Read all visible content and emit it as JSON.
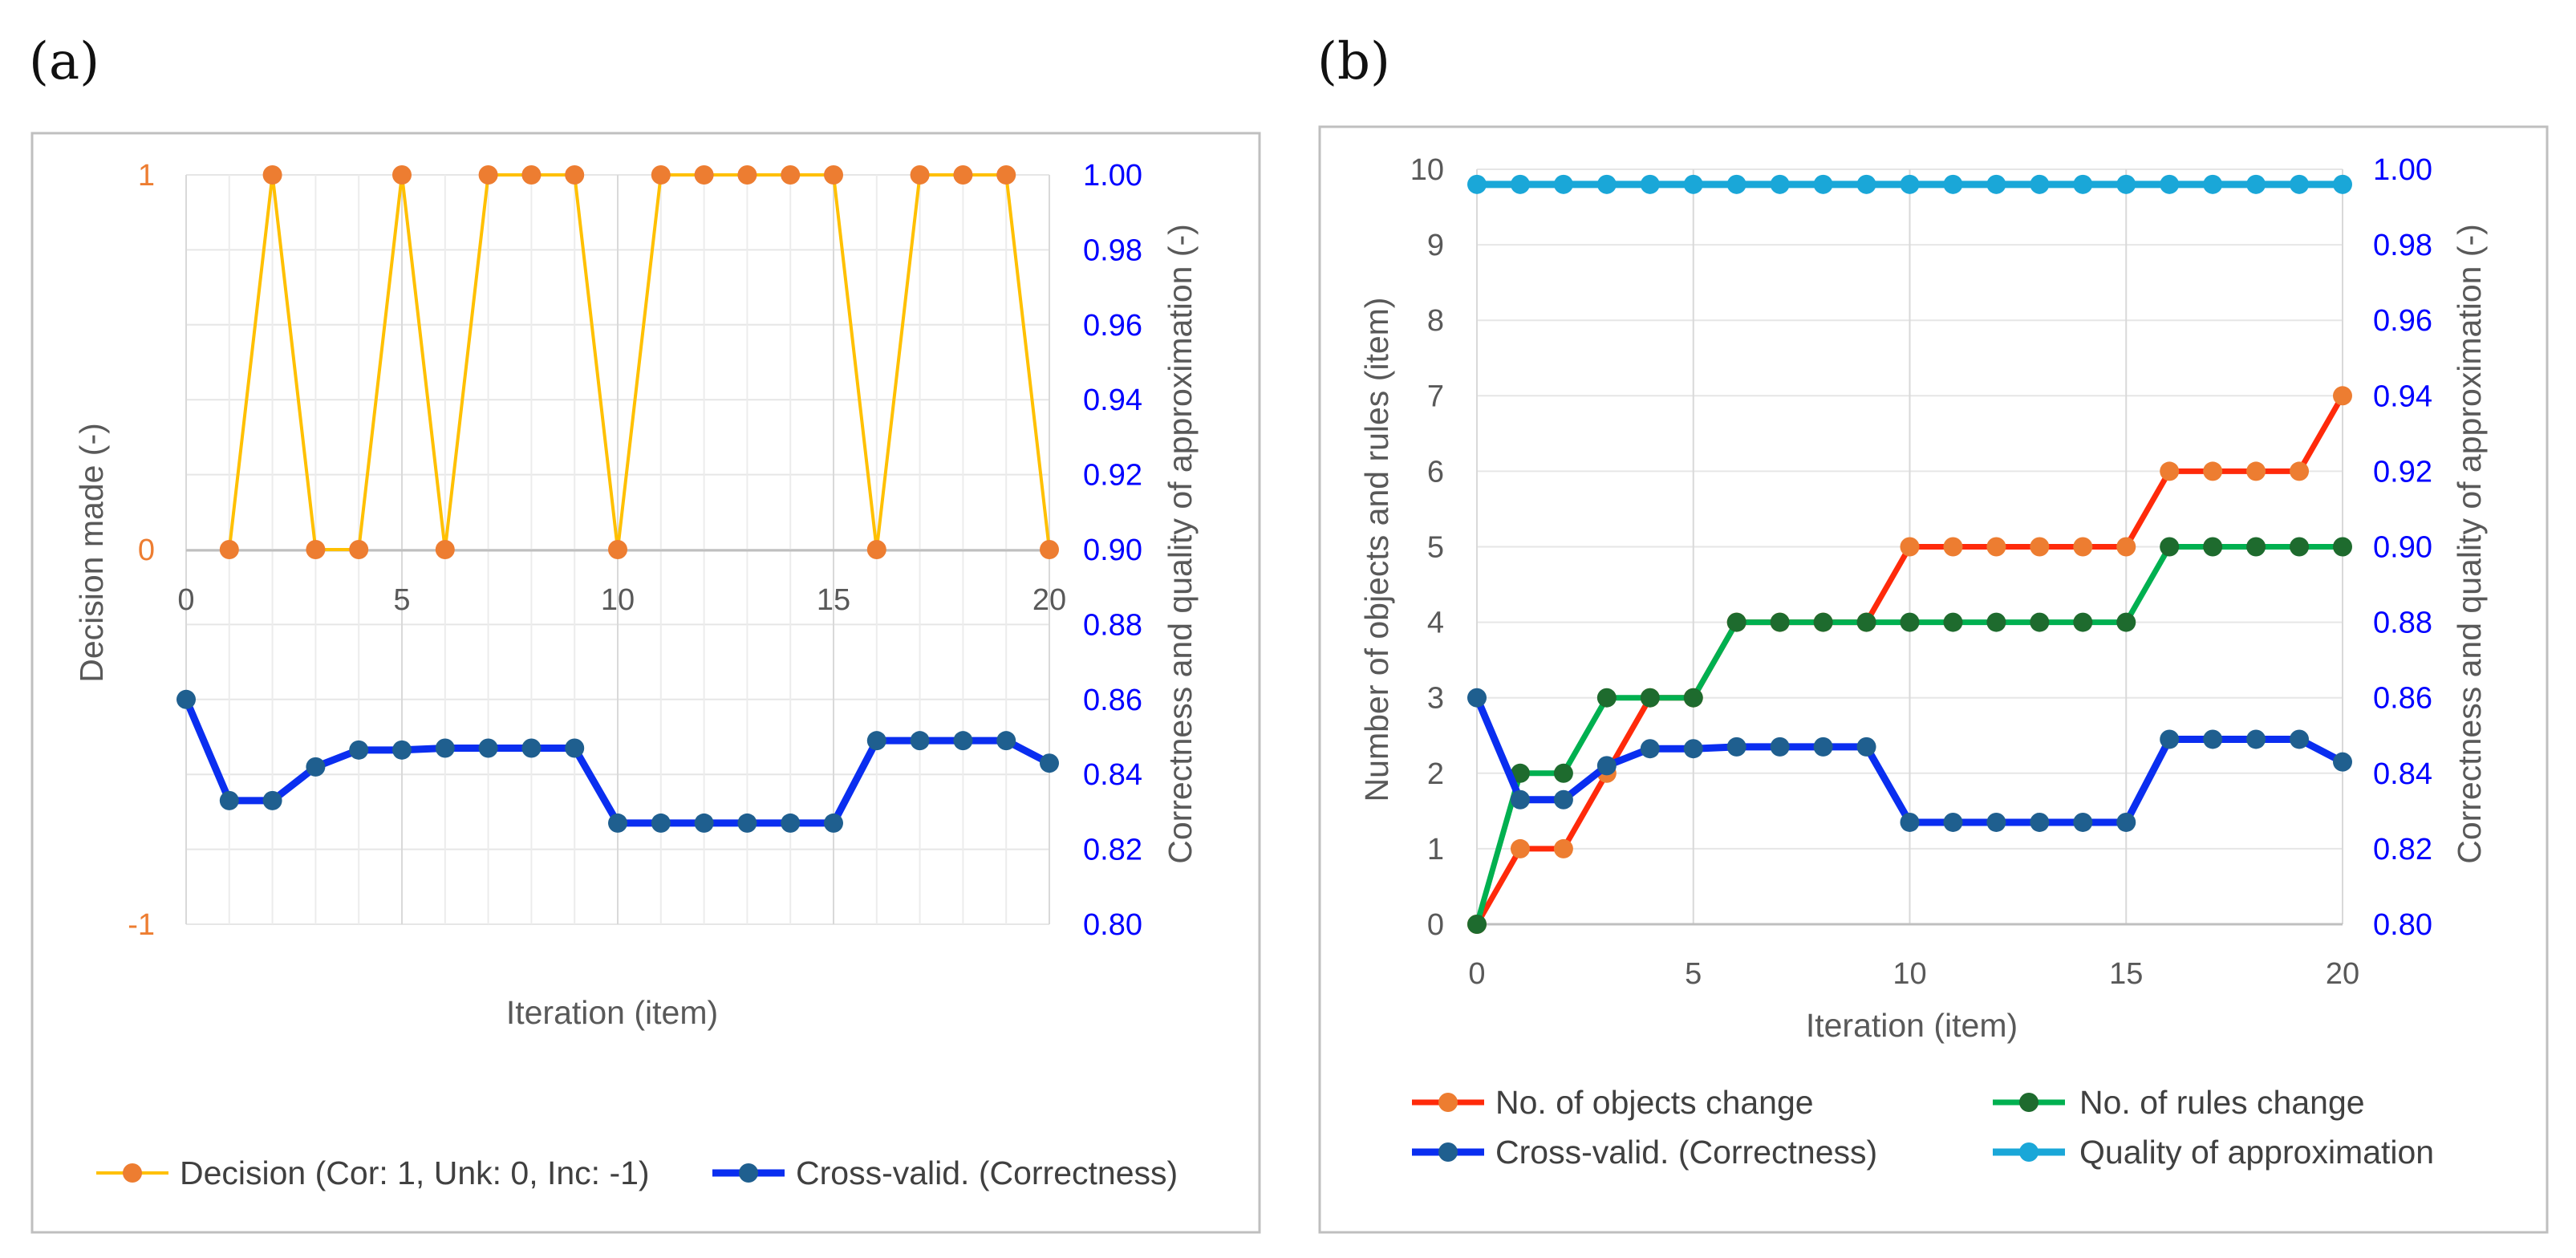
{
  "panels": [
    "(a)",
    "(b)"
  ],
  "chart_data": [
    {
      "type": "line",
      "panel": "(a)",
      "xlabel": "Iteration (item)",
      "ylabel": "Decision made (-)",
      "y2label": "Correctness and quality of approximation (-)",
      "xlim": [
        0,
        20
      ],
      "ylim": [
        -1,
        1
      ],
      "y2lim": [
        0.8,
        1.0
      ],
      "xticks": [
        "0",
        "5",
        "10",
        "15",
        "20"
      ],
      "yticks": [
        "-1",
        "0",
        "1"
      ],
      "y2ticks": [
        "0.80",
        "0.82",
        "0.84",
        "0.86",
        "0.88",
        "0.90",
        "0.92",
        "0.94",
        "0.96",
        "0.98",
        "1.00"
      ],
      "series": [
        {
          "name": "Decision (Cor: 1, Unk: 0, Inc: -1)",
          "axis": "left",
          "color": "#FFC000",
          "marker": "#ED7D31",
          "x": [
            1,
            2,
            3,
            4,
            5,
            6,
            7,
            8,
            9,
            10,
            11,
            12,
            13,
            14,
            15,
            16,
            17,
            18,
            19,
            20
          ],
          "values": [
            0,
            1,
            0,
            0,
            1,
            0,
            1,
            1,
            1,
            0,
            1,
            1,
            1,
            1,
            1,
            0,
            1,
            1,
            1,
            0
          ]
        },
        {
          "name": "Cross-valid. (Correctness)",
          "axis": "right",
          "color": "#0A2EF0",
          "marker": "#1F5F8F",
          "x": [
            0,
            1,
            2,
            3,
            4,
            5,
            6,
            7,
            8,
            9,
            10,
            11,
            12,
            13,
            14,
            15,
            16,
            17,
            18,
            19,
            20
          ],
          "values": [
            0.86,
            0.833,
            0.833,
            0.842,
            0.8465,
            0.8465,
            0.847,
            0.847,
            0.847,
            0.847,
            0.827,
            0.827,
            0.827,
            0.827,
            0.827,
            0.827,
            0.849,
            0.849,
            0.849,
            0.849,
            0.843
          ]
        }
      ],
      "legend": "bottom"
    },
    {
      "type": "line",
      "panel": "(b)",
      "xlabel": "Iteration (item)",
      "ylabel": "Number of objects and rules (item)",
      "y2label": "Correctness and quality of approximation (-)",
      "xlim": [
        0,
        20
      ],
      "ylim": [
        0,
        10
      ],
      "y2lim": [
        0.8,
        1.0
      ],
      "xticks": [
        "0",
        "5",
        "10",
        "15",
        "20"
      ],
      "yticks": [
        "0",
        "1",
        "2",
        "3",
        "4",
        "5",
        "6",
        "7",
        "8",
        "9",
        "10"
      ],
      "y2ticks": [
        "0.80",
        "0.82",
        "0.84",
        "0.86",
        "0.88",
        "0.90",
        "0.92",
        "0.94",
        "0.96",
        "0.98",
        "1.00"
      ],
      "series": [
        {
          "name": "No. of objects change",
          "axis": "left",
          "color": "#FF2A0A",
          "marker": "#ED7D31",
          "x": [
            0,
            1,
            2,
            3,
            4,
            5,
            6,
            7,
            8,
            9,
            10,
            11,
            12,
            13,
            14,
            15,
            16,
            17,
            18,
            19,
            20
          ],
          "values": [
            0,
            1,
            1,
            2,
            3,
            3,
            4,
            4,
            4,
            4,
            5,
            5,
            5,
            5,
            5,
            5,
            6,
            6,
            6,
            6,
            7
          ]
        },
        {
          "name": "No. of rules change",
          "axis": "left",
          "color": "#00B050",
          "marker": "#1E6B2E",
          "x": [
            0,
            1,
            2,
            3,
            4,
            5,
            6,
            7,
            8,
            9,
            10,
            11,
            12,
            13,
            14,
            15,
            16,
            17,
            18,
            19,
            20
          ],
          "values": [
            0,
            2,
            2,
            3,
            3,
            3,
            4,
            4,
            4,
            4,
            4,
            4,
            4,
            4,
            4,
            4,
            5,
            5,
            5,
            5,
            5
          ]
        },
        {
          "name": "Cross-valid. (Correctness)",
          "axis": "right",
          "color": "#0A2EF0",
          "marker": "#1F5F8F",
          "x": [
            0,
            1,
            2,
            3,
            4,
            5,
            6,
            7,
            8,
            9,
            10,
            11,
            12,
            13,
            14,
            15,
            16,
            17,
            18,
            19,
            20
          ],
          "values": [
            0.86,
            0.833,
            0.833,
            0.842,
            0.8465,
            0.8465,
            0.847,
            0.847,
            0.847,
            0.847,
            0.827,
            0.827,
            0.827,
            0.827,
            0.827,
            0.827,
            0.849,
            0.849,
            0.849,
            0.849,
            0.843
          ]
        },
        {
          "name": "Quality of approximation",
          "axis": "right",
          "color": "#1AA7D8",
          "marker": "#1AA7D8",
          "x": [
            0,
            1,
            2,
            3,
            4,
            5,
            6,
            7,
            8,
            9,
            10,
            11,
            12,
            13,
            14,
            15,
            16,
            17,
            18,
            19,
            20
          ],
          "values": [
            0.996,
            0.996,
            0.996,
            0.996,
            0.996,
            0.996,
            0.996,
            0.996,
            0.996,
            0.996,
            0.996,
            0.996,
            0.996,
            0.996,
            0.996,
            0.996,
            0.996,
            0.996,
            0.996,
            0.996,
            0.996
          ]
        }
      ],
      "legend": "bottom"
    }
  ]
}
